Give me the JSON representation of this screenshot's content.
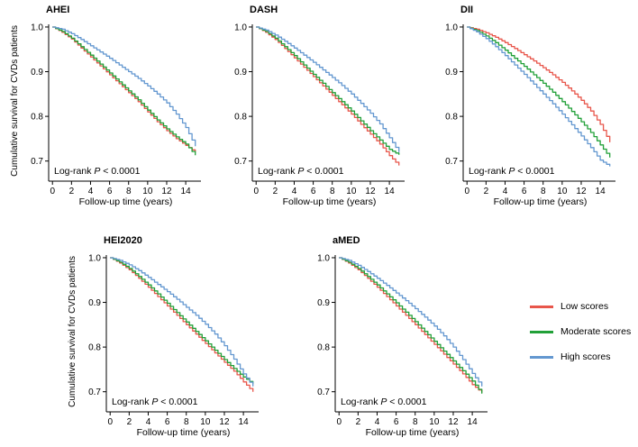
{
  "figure": {
    "annotation_prefix": "Log-rank ",
    "annotation_p": "P",
    "annotation_suffix": " < 0.0001"
  },
  "colors": {
    "low": "#e8564b",
    "moderate": "#21a038",
    "high": "#6397d0"
  },
  "legend": {
    "items": [
      {
        "label": "Low scores",
        "level": "low"
      },
      {
        "label": "Moderate scores",
        "level": "moderate"
      },
      {
        "label": "High scores",
        "level": "high"
      }
    ]
  },
  "chart_data": {
    "type": "line",
    "subtype": "kaplan-meier-survival",
    "xlabel": "Follow-up time (years)",
    "ylabel": "Cumulative survival for CVDs patients",
    "xticks": [
      0,
      2,
      4,
      6,
      8,
      10,
      12,
      14
    ],
    "yticks": [
      "1.0",
      "0.9",
      "0.8",
      "0.7"
    ],
    "xlim": [
      -0.4,
      15.6
    ],
    "ylim": [
      0.655,
      1.01
    ],
    "grid": false,
    "legend": [
      "Low scores",
      "Moderate scores",
      "High scores"
    ],
    "legend_position": "right",
    "annotation": "Log-rank P < 0.0001",
    "x_years": [
      0,
      1,
      2,
      3,
      4,
      5,
      6,
      7,
      8,
      9,
      10,
      11,
      12,
      13,
      14,
      15
    ],
    "panels": [
      {
        "title": "AHEI",
        "series": [
          {
            "name": "Low scores",
            "level": "low",
            "values": [
              1.0,
              0.988,
              0.973,
              0.953,
              0.933,
              0.913,
              0.893,
              0.873,
              0.853,
              0.833,
              0.81,
              0.788,
              0.768,
              0.75,
              0.735,
              0.72
            ]
          },
          {
            "name": "Moderate scores",
            "level": "moderate",
            "values": [
              1.0,
              0.99,
              0.975,
              0.956,
              0.937,
              0.917,
              0.897,
              0.877,
              0.857,
              0.837,
              0.814,
              0.792,
              0.772,
              0.754,
              0.738,
              0.713
            ]
          },
          {
            "name": "High scores",
            "level": "high",
            "values": [
              1.0,
              0.995,
              0.985,
              0.972,
              0.958,
              0.944,
              0.93,
              0.915,
              0.9,
              0.885,
              0.868,
              0.85,
              0.83,
              0.805,
              0.775,
              0.733
            ]
          }
        ]
      },
      {
        "title": "DASH",
        "series": [
          {
            "name": "Low scores",
            "level": "low",
            "values": [
              1.0,
              0.988,
              0.972,
              0.952,
              0.931,
              0.91,
              0.889,
              0.868,
              0.847,
              0.826,
              0.805,
              0.782,
              0.76,
              0.738,
              0.712,
              0.69
            ]
          },
          {
            "name": "Moderate scores",
            "level": "moderate",
            "values": [
              1.0,
              0.99,
              0.975,
              0.956,
              0.936,
              0.915,
              0.894,
              0.874,
              0.853,
              0.833,
              0.812,
              0.79,
              0.768,
              0.747,
              0.726,
              0.714
            ]
          },
          {
            "name": "High scores",
            "level": "high",
            "values": [
              1.0,
              0.993,
              0.982,
              0.968,
              0.953,
              0.937,
              0.921,
              0.904,
              0.887,
              0.869,
              0.85,
              0.829,
              0.807,
              0.783,
              0.752,
              0.72
            ]
          }
        ]
      },
      {
        "title": "DII",
        "series": [
          {
            "name": "Low scores",
            "level": "low",
            "values": [
              1.0,
              0.995,
              0.987,
              0.977,
              0.965,
              0.952,
              0.938,
              0.924,
              0.909,
              0.893,
              0.876,
              0.857,
              0.836,
              0.812,
              0.782,
              0.742
            ]
          },
          {
            "name": "Moderate scores",
            "level": "moderate",
            "values": [
              1.0,
              0.992,
              0.98,
              0.965,
              0.948,
              0.93,
              0.912,
              0.893,
              0.874,
              0.854,
              0.833,
              0.811,
              0.788,
              0.764,
              0.736,
              0.708
            ]
          },
          {
            "name": "High scores",
            "level": "high",
            "values": [
              1.0,
              0.989,
              0.974,
              0.956,
              0.936,
              0.915,
              0.894,
              0.872,
              0.85,
              0.828,
              0.805,
              0.781,
              0.756,
              0.73,
              0.702,
              0.688
            ]
          }
        ]
      },
      {
        "title": "HEI2020",
        "series": [
          {
            "name": "Low scores",
            "level": "low",
            "values": [
              1.0,
              0.988,
              0.973,
              0.954,
              0.934,
              0.913,
              0.892,
              0.871,
              0.85,
              0.829,
              0.808,
              0.787,
              0.766,
              0.746,
              0.722,
              0.7
            ]
          },
          {
            "name": "Moderate scores",
            "level": "moderate",
            "values": [
              1.0,
              0.99,
              0.976,
              0.958,
              0.939,
              0.919,
              0.898,
              0.877,
              0.856,
              0.835,
              0.814,
              0.793,
              0.772,
              0.752,
              0.733,
              0.718
            ]
          },
          {
            "name": "High scores",
            "level": "high",
            "values": [
              1.0,
              0.994,
              0.984,
              0.971,
              0.956,
              0.94,
              0.924,
              0.907,
              0.889,
              0.871,
              0.851,
              0.829,
              0.803,
              0.773,
              0.74,
              0.712
            ]
          }
        ]
      },
      {
        "title": "aMED",
        "series": [
          {
            "name": "Low scores",
            "level": "low",
            "values": [
              1.0,
              0.988,
              0.973,
              0.954,
              0.934,
              0.913,
              0.892,
              0.871,
              0.85,
              0.828,
              0.806,
              0.784,
              0.762,
              0.74,
              0.716,
              0.698
            ]
          },
          {
            "name": "Moderate scores",
            "level": "moderate",
            "values": [
              1.0,
              0.99,
              0.976,
              0.958,
              0.939,
              0.919,
              0.899,
              0.878,
              0.857,
              0.835,
              0.813,
              0.791,
              0.769,
              0.747,
              0.724,
              0.696
            ]
          },
          {
            "name": "High scores",
            "level": "high",
            "values": [
              1.0,
              0.994,
              0.983,
              0.969,
              0.954,
              0.938,
              0.921,
              0.904,
              0.886,
              0.867,
              0.847,
              0.825,
              0.8,
              0.772,
              0.741,
              0.712
            ]
          }
        ]
      }
    ]
  }
}
